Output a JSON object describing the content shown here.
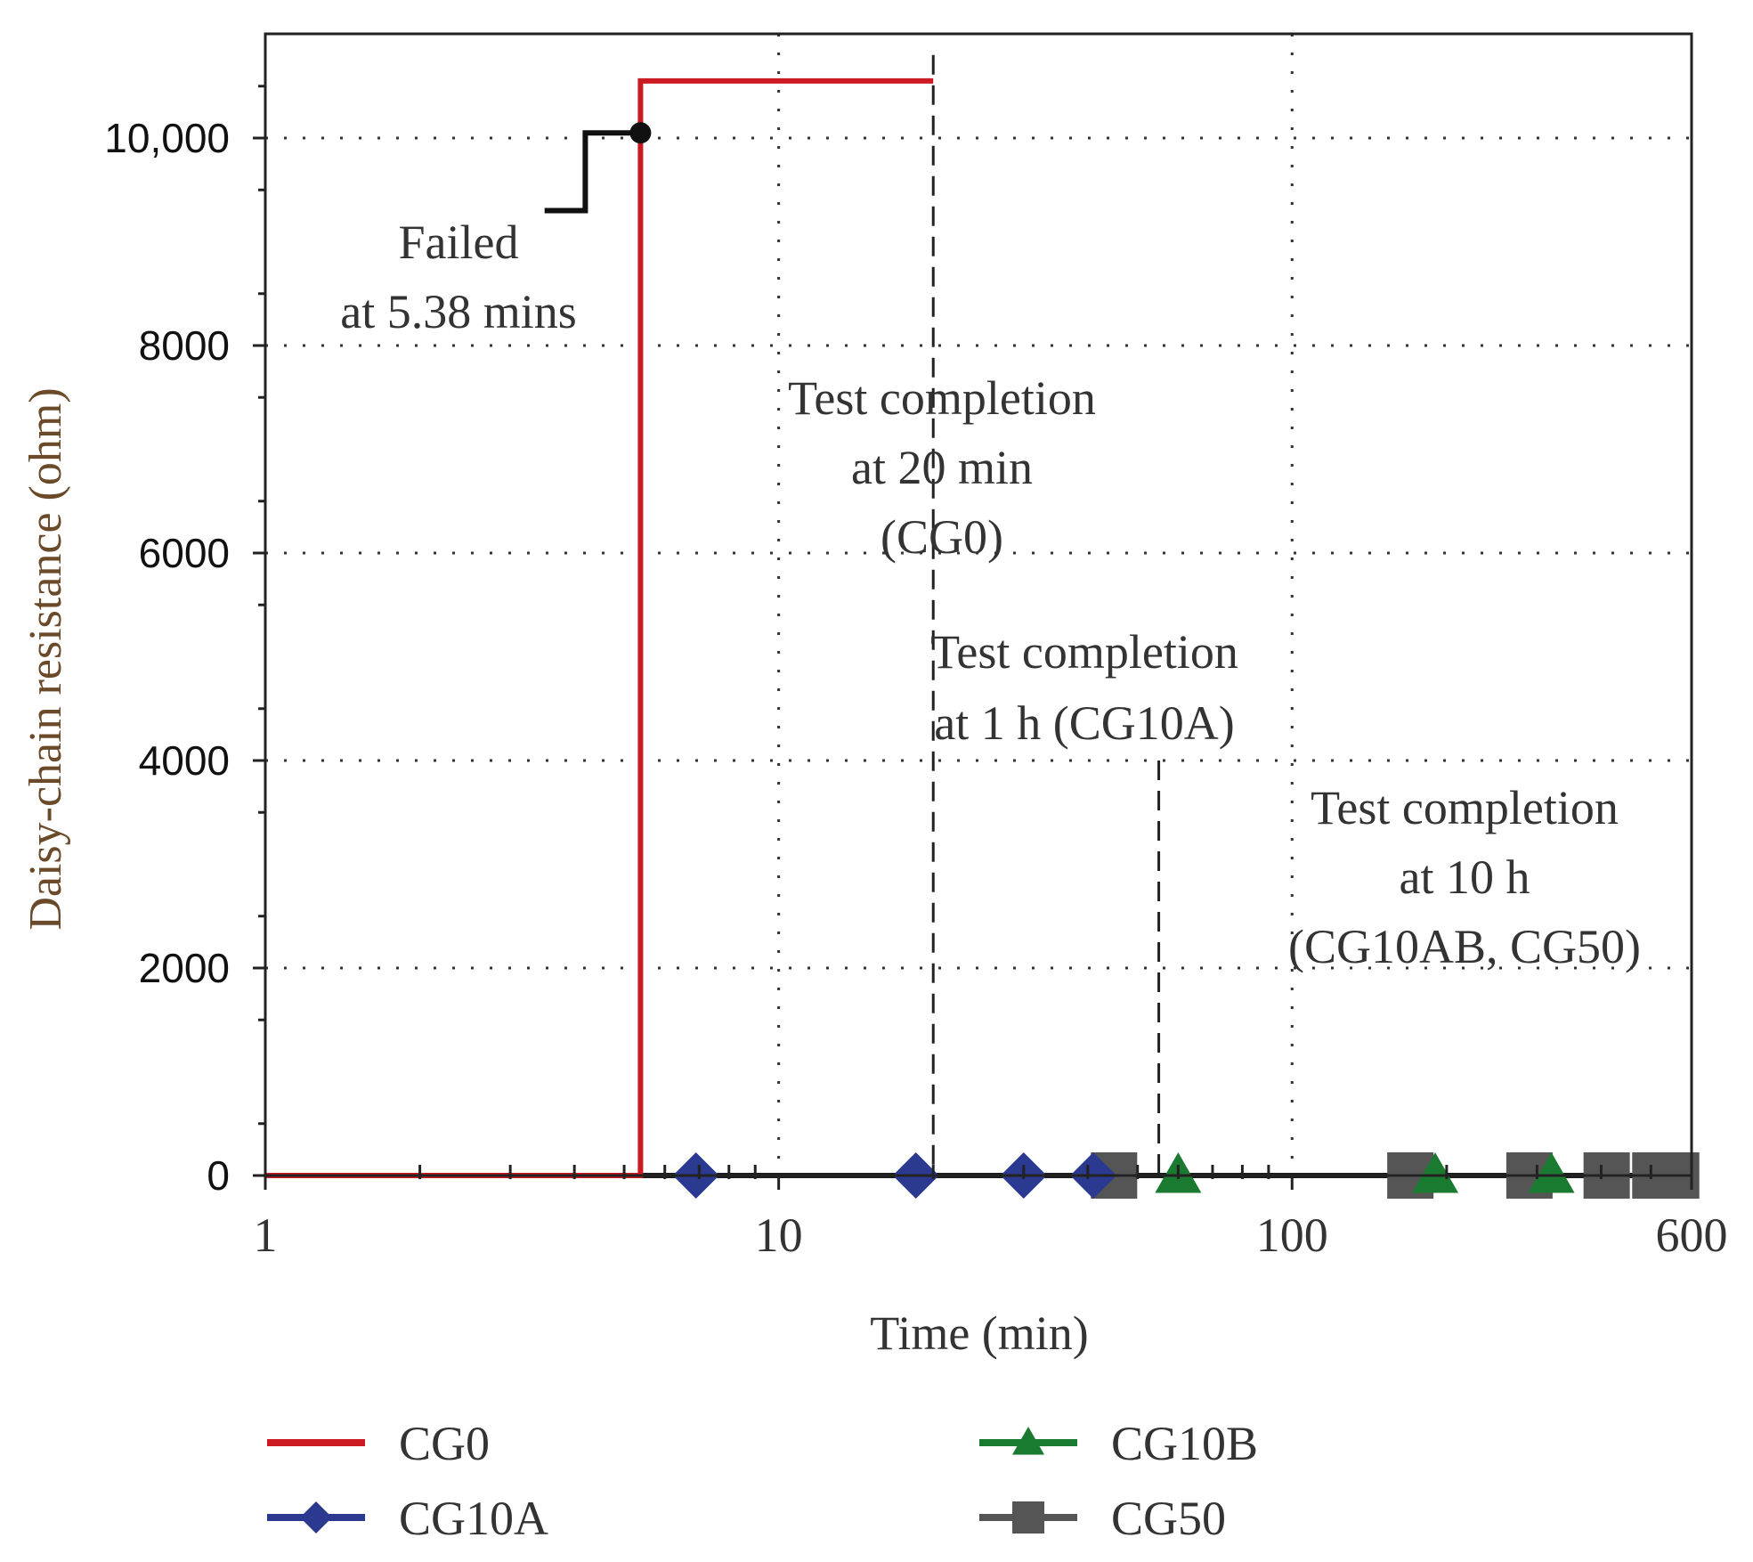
{
  "chart_data": {
    "type": "line",
    "xscale": "log",
    "xlabel": "Time (min)",
    "ylabel": "Daisy-chain resistance (ohm)",
    "xlim": [
      1,
      600
    ],
    "ylim": [
      0,
      10800
    ],
    "x_ticks": [
      {
        "value": 1,
        "label": "1"
      },
      {
        "value": 10,
        "label": "10"
      },
      {
        "value": 100,
        "label": "100"
      },
      {
        "value": 600,
        "label": "600"
      }
    ],
    "y_ticks": [
      {
        "value": 0,
        "label": "0"
      },
      {
        "value": 2000,
        "label": "2000"
      },
      {
        "value": 4000,
        "label": "4000"
      },
      {
        "value": 6000,
        "label": "6000"
      },
      {
        "value": 8000,
        "label": "8000"
      },
      {
        "value": 10000,
        "label": "10,000"
      }
    ],
    "grid": true,
    "series": [
      {
        "name": "CG0",
        "color": "#cc1a23",
        "marker": "none",
        "points": [
          [
            1,
            0
          ],
          [
            5.38,
            0
          ],
          [
            5.38,
            10550
          ],
          [
            20,
            10550
          ]
        ]
      },
      {
        "name": "CG10A",
        "color": "#2b3990",
        "marker": "diamond",
        "points": [
          [
            1,
            0
          ],
          [
            6.9,
            0
          ],
          [
            18.5,
            0
          ],
          [
            30,
            0
          ],
          [
            41,
            0
          ],
          [
            60,
            0
          ]
        ],
        "marker_x": [
          6.9,
          18.5,
          30,
          41
        ]
      },
      {
        "name": "CG10B",
        "color": "#1a7a30",
        "marker": "triangle",
        "points": [
          [
            50,
            0
          ],
          [
            600,
            0
          ]
        ],
        "marker_x": [
          60,
          190,
          320
        ]
      },
      {
        "name": "CG50",
        "color": "#555555",
        "marker": "square",
        "points": [
          [
            45,
            0
          ],
          [
            600,
            0
          ]
        ],
        "marker_x": [
          45,
          170,
          290,
          410,
          510,
          560
        ]
      },
      {
        "name": "",
        "color": "#111111",
        "marker": "none",
        "points": [
          [
            3.5,
            9300
          ],
          [
            4.2,
            9300
          ],
          [
            4.2,
            10050
          ],
          [
            5.38,
            10050
          ]
        ],
        "end_dot": [
          5.38,
          10050
        ]
      }
    ],
    "dashed_lines": [
      {
        "x": 20,
        "y_top": 10800
      },
      {
        "x": 55,
        "y_top": 4000
      },
      {
        "x": 600,
        "y_top": 4000
      }
    ],
    "annotations": [
      {
        "id": "failed",
        "lines": [
          "Failed",
          "at 5.38 mins"
        ]
      },
      {
        "id": "cg0",
        "lines": [
          "Test completion",
          "at 20 min",
          "(CG0)"
        ]
      },
      {
        "id": "cg10a",
        "lines": [
          "Test completion",
          "at 1 h (CG10A)"
        ]
      },
      {
        "id": "cg50",
        "lines": [
          "Test completion",
          "at 10 h",
          "(CG10AB, CG50)"
        ]
      }
    ],
    "legend": {
      "placement": "bottom",
      "entries": [
        "CG0",
        "CG10B",
        "CG10A",
        "CG50"
      ]
    }
  }
}
